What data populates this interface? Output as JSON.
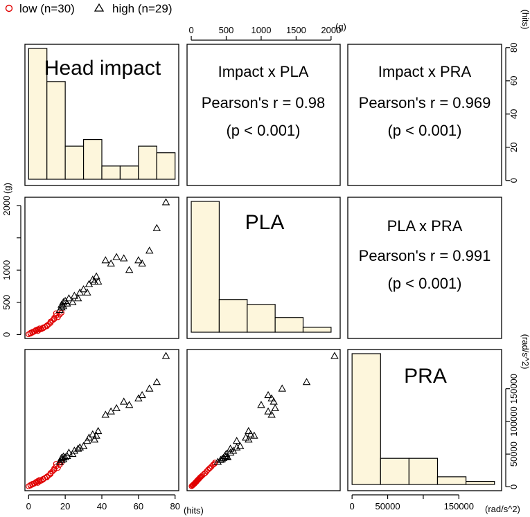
{
  "chart_data": {
    "type": "scatter-matrix",
    "variables": [
      "Head impact",
      "PLA",
      "PRA"
    ],
    "units": [
      "(hits)",
      "(g)",
      "(rad/s^2)"
    ],
    "legend": {
      "position": "top-left",
      "entries": [
        {
          "label": "low (n=30)",
          "marker": "circle",
          "color": "#e00000"
        },
        {
          "label": "high (n=29)",
          "marker": "triangle",
          "color": "#000000"
        }
      ]
    },
    "correlations": [
      {
        "title": "Impact x PLA",
        "r_text": "Pearson's r = 0.98",
        "p_text": "(p < 0.001)"
      },
      {
        "title": "Impact x PRA",
        "r_text": "Pearson's r = 0.969",
        "p_text": "(p < 0.001)"
      },
      {
        "title": "PLA x PRA",
        "r_text": "Pearson's r = 0.991",
        "p_text": "(p < 0.001)"
      }
    ],
    "axes": {
      "hits": {
        "range": [
          -2,
          82
        ],
        "ticks": [
          0,
          20,
          40,
          60,
          80
        ],
        "tick_labels": [
          "0",
          "20",
          "40",
          "60",
          "80"
        ],
        "unit_label": "(hits)"
      },
      "g": {
        "range": [
          -60,
          2130
        ],
        "ticks": [
          0,
          500,
          1000,
          1500,
          2000
        ],
        "tick_labels": [
          "0",
          "500",
          "1000",
          "1500",
          "2000"
        ],
        "unit_label": "(g)"
      },
      "g_left_tick_labels": [
        "0",
        "500",
        "1000",
        "",
        "2000"
      ],
      "rad": {
        "range": [
          -6000,
          210000
        ],
        "ticks": [
          0,
          50000,
          100000,
          150000
        ],
        "tick_labels": [
          "0",
          "50000",
          "",
          "150000"
        ],
        "unit_label": "(rad/s^2)"
      },
      "rad_right_tick_labels": [
        "0",
        "50000",
        "100000",
        "150000"
      ],
      "hits_count_axis": {
        "range": [
          -3,
          82
        ],
        "ticks": [
          0,
          20,
          40,
          60,
          80
        ],
        "tick_labels": [
          "0",
          "20",
          "40",
          "60",
          "80"
        ],
        "unit_label": "(hits)"
      }
    },
    "histograms": [
      {
        "variable": "Head impact",
        "bin_edges": [
          0,
          10,
          20,
          30,
          40,
          50,
          60,
          70,
          80
        ],
        "counts": [
          79,
          59,
          20,
          24,
          8,
          8,
          20,
          16
        ]
      },
      {
        "variable": "PLA",
        "bin_edges": [
          0,
          400,
          800,
          1200,
          1600,
          2000
        ],
        "counts": [
          80,
          20,
          17,
          9,
          3
        ]
      },
      {
        "variable": "PRA",
        "bin_edges": [
          0,
          40000,
          80000,
          120000,
          160000,
          200000
        ],
        "counts": [
          85,
          17,
          17,
          5,
          2
        ]
      }
    ],
    "points": {
      "low": [
        [
          0,
          5,
          800
        ],
        [
          1,
          15,
          1900
        ],
        [
          1,
          25,
          2600
        ],
        [
          2,
          30,
          3300
        ],
        [
          2,
          40,
          4200
        ],
        [
          3,
          50,
          5200
        ],
        [
          3,
          45,
          4700
        ],
        [
          4,
          60,
          6500
        ],
        [
          4,
          70,
          7200
        ],
        [
          5,
          55,
          6000
        ],
        [
          5,
          80,
          8700
        ],
        [
          6,
          75,
          8300
        ],
        [
          6,
          95,
          10500
        ],
        [
          7,
          85,
          9500
        ],
        [
          8,
          110,
          12000
        ],
        [
          8,
          100,
          11300
        ],
        [
          9,
          120,
          13500
        ],
        [
          10,
          140,
          15500
        ],
        [
          10,
          130,
          14500
        ],
        [
          11,
          160,
          17500
        ],
        [
          12,
          180,
          19500
        ],
        [
          12,
          200,
          21000
        ],
        [
          13,
          220,
          23500
        ],
        [
          14,
          240,
          26000
        ],
        [
          14,
          260,
          28000
        ],
        [
          15,
          330,
          35000
        ],
        [
          15,
          290,
          31000
        ],
        [
          16,
          270,
          29000
        ],
        [
          17,
          310,
          33500
        ],
        [
          18,
          340,
          37000
        ]
      ],
      "high": [
        [
          17,
          380,
          38000
        ],
        [
          18,
          420,
          41000
        ],
        [
          18,
          460,
          44000
        ],
        [
          19,
          500,
          46000
        ],
        [
          19,
          440,
          42000
        ],
        [
          20,
          520,
          45000
        ],
        [
          21,
          480,
          47000
        ],
        [
          22,
          560,
          52000
        ],
        [
          24,
          500,
          50000
        ],
        [
          25,
          600,
          55000
        ],
        [
          27,
          560,
          58000
        ],
        [
          28,
          650,
          60000
        ],
        [
          30,
          700,
          62000
        ],
        [
          32,
          650,
          70000
        ],
        [
          33,
          780,
          75000
        ],
        [
          35,
          850,
          80000
        ],
        [
          36,
          820,
          72000
        ],
        [
          37,
          900,
          78000
        ],
        [
          38,
          820,
          85000
        ],
        [
          42,
          1150,
          110000
        ],
        [
          45,
          1100,
          115000
        ],
        [
          48,
          1200,
          120000
        ],
        [
          52,
          1180,
          130000
        ],
        [
          55,
          1000,
          125000
        ],
        [
          60,
          1150,
          135000
        ],
        [
          62,
          1100,
          140000
        ],
        [
          66,
          1300,
          150000
        ],
        [
          70,
          1650,
          160000
        ],
        [
          75,
          2050,
          200000
        ]
      ]
    }
  }
}
